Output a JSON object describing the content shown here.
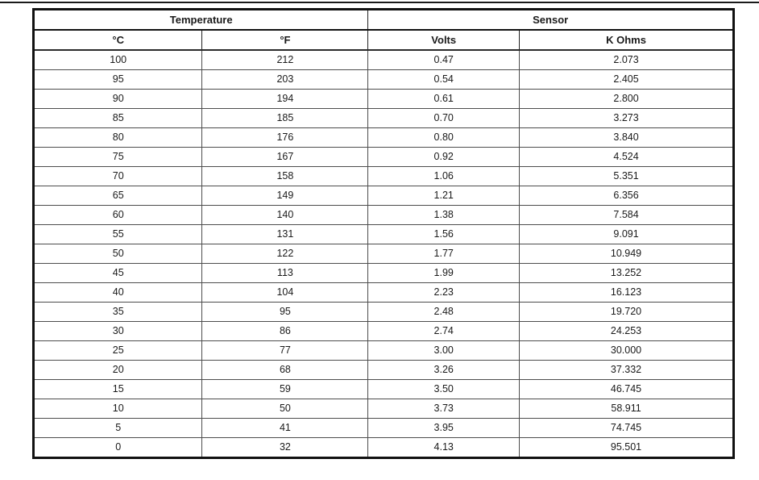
{
  "page": {
    "background": "#ffffff",
    "top_rule_color": "#1a1a1a"
  },
  "colors": {
    "outer_border": "#111111",
    "inner_border": "#4d4d4d",
    "text": "#1a1a1a"
  },
  "table": {
    "column_groups": [
      {
        "label": "Temperature",
        "span": 2
      },
      {
        "label": "Sensor",
        "span": 2
      }
    ],
    "columns": [
      "°C",
      "°F",
      "Volts",
      "K Ohms"
    ],
    "rows": [
      [
        "100",
        "212",
        "0.47",
        "2.073"
      ],
      [
        "95",
        "203",
        "0.54",
        "2.405"
      ],
      [
        "90",
        "194",
        "0.61",
        "2.800"
      ],
      [
        "85",
        "185",
        "0.70",
        "3.273"
      ],
      [
        "80",
        "176",
        "0.80",
        "3.840"
      ],
      [
        "75",
        "167",
        "0.92",
        "4.524"
      ],
      [
        "70",
        "158",
        "1.06",
        "5.351"
      ],
      [
        "65",
        "149",
        "1.21",
        "6.356"
      ],
      [
        "60",
        "140",
        "1.38",
        "7.584"
      ],
      [
        "55",
        "131",
        "1.56",
        "9.091"
      ],
      [
        "50",
        "122",
        "1.77",
        "10.949"
      ],
      [
        "45",
        "113",
        "1.99",
        "13.252"
      ],
      [
        "40",
        "104",
        "2.23",
        "16.123"
      ],
      [
        "35",
        "95",
        "2.48",
        "19.720"
      ],
      [
        "30",
        "86",
        "2.74",
        "24.253"
      ],
      [
        "25",
        "77",
        "3.00",
        "30.000"
      ],
      [
        "20",
        "68",
        "3.26",
        "37.332"
      ],
      [
        "15",
        "59",
        "3.50",
        "46.745"
      ],
      [
        "10",
        "50",
        "3.73",
        "58.911"
      ],
      [
        "5",
        "41",
        "3.95",
        "74.745"
      ],
      [
        "0",
        "32",
        "4.13",
        "95.501"
      ]
    ]
  }
}
